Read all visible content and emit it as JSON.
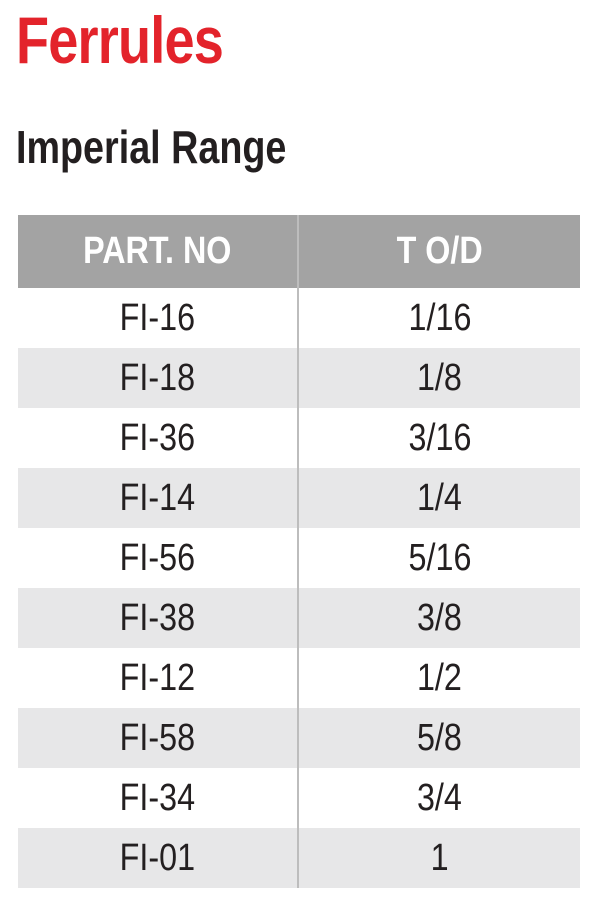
{
  "header": {
    "title": "Ferrules",
    "subtitle": "Imperial Range"
  },
  "table": {
    "columns": [
      "PART. NO",
      "T O/D"
    ],
    "rows": [
      [
        "FI-16",
        "1/16"
      ],
      [
        "FI-18",
        "1/8"
      ],
      [
        "FI-36",
        "3/16"
      ],
      [
        "FI-14",
        "1/4"
      ],
      [
        "FI-56",
        "5/16"
      ],
      [
        "FI-38",
        "3/8"
      ],
      [
        "FI-12",
        "1/2"
      ],
      [
        "FI-58",
        "5/8"
      ],
      [
        "FI-34",
        "3/4"
      ],
      [
        "FI-01",
        "1"
      ]
    ]
  }
}
